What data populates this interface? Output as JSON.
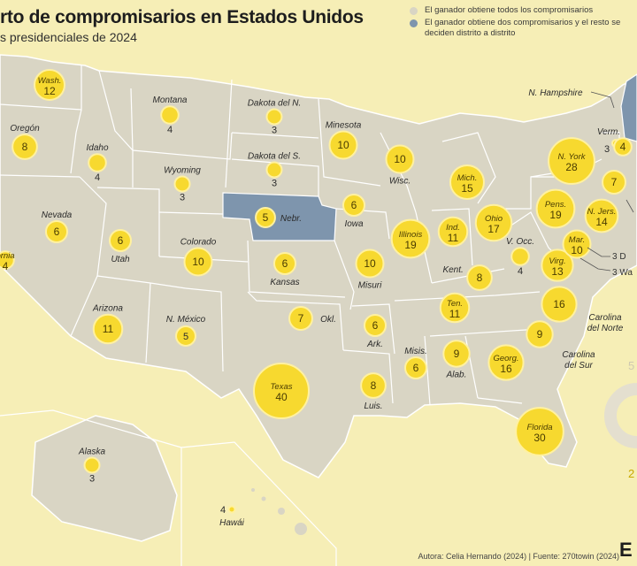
{
  "header": {
    "title": "rto de compromisarios en Estados Unidos",
    "subtitle": "s presidenciales de 2024"
  },
  "legend": {
    "items": [
      {
        "label": "El ganador obtiene todos los compromisarios",
        "color": "#d9d5c4"
      },
      {
        "label": "El ganador obtiene dos compromisarios y el resto se deciden distrito a distrito",
        "color": "#7e95ad"
      }
    ]
  },
  "colors": {
    "background": "#f6eeb6",
    "state_fill": "#d9d5c4",
    "state_border": "#ffffff",
    "split_state_fill": "#7e95ad",
    "bubble_fill": "#f7d92f",
    "bubble_stroke": "#fff1a0"
  },
  "states": [
    {
      "id": "washington",
      "name": "Wash.",
      "votes": "12",
      "label_inside": true,
      "split": false
    },
    {
      "id": "oregon",
      "name": "Oregón",
      "votes": "8",
      "label_inside": false,
      "split": false
    },
    {
      "id": "california",
      "name": "ornia",
      "votes": "4",
      "label_inside": true,
      "split": false
    },
    {
      "id": "idaho",
      "name": "Idaho",
      "votes": "4",
      "label_inside": false,
      "split": false
    },
    {
      "id": "nevada",
      "name": "Nevada",
      "votes": "6",
      "label_inside": false,
      "split": false
    },
    {
      "id": "utah",
      "name": "Utah",
      "votes": "6",
      "label_inside": false,
      "split": false
    },
    {
      "id": "arizona",
      "name": "Arizona",
      "votes": "11",
      "label_inside": false,
      "split": false
    },
    {
      "id": "montana",
      "name": "Montana",
      "votes": "4",
      "label_inside": false,
      "split": false
    },
    {
      "id": "wyoming",
      "name": "Wyoming",
      "votes": "3",
      "label_inside": false,
      "split": false
    },
    {
      "id": "colorado",
      "name": "Colorado",
      "votes": "10",
      "label_inside": false,
      "split": false
    },
    {
      "id": "new-mexico",
      "name": "N. México",
      "votes": "5",
      "label_inside": false,
      "split": false
    },
    {
      "id": "north-dakota",
      "name": "Dakota del N.",
      "votes": "3",
      "label_inside": false,
      "split": false
    },
    {
      "id": "south-dakota",
      "name": "Dakota del S.",
      "votes": "3",
      "label_inside": false,
      "split": false
    },
    {
      "id": "nebraska",
      "name": "Nebr.",
      "votes": "5",
      "label_inside": false,
      "split": true
    },
    {
      "id": "kansas",
      "name": "Kansas",
      "votes": "6",
      "label_inside": false,
      "split": false
    },
    {
      "id": "oklahoma",
      "name": "Okl.",
      "votes": "7",
      "label_inside": false,
      "split": false
    },
    {
      "id": "texas",
      "name": "Texas",
      "votes": "40",
      "label_inside": true,
      "split": false
    },
    {
      "id": "minnesota",
      "name": "Minesota",
      "votes": "10",
      "label_inside": false,
      "split": false
    },
    {
      "id": "iowa",
      "name": "Iowa",
      "votes": "6",
      "label_inside": false,
      "split": false
    },
    {
      "id": "missouri",
      "name": "Misuri",
      "votes": "10",
      "label_inside": false,
      "split": false
    },
    {
      "id": "arkansas",
      "name": "Ark.",
      "votes": "6",
      "label_inside": false,
      "split": false
    },
    {
      "id": "louisiana",
      "name": "Luis.",
      "votes": "8",
      "label_inside": false,
      "split": false
    },
    {
      "id": "wisconsin",
      "name": "Wisc.",
      "votes": "10",
      "label_inside": false,
      "split": false
    },
    {
      "id": "illinois",
      "name": "Illinois",
      "votes": "19",
      "label_inside": true,
      "split": false
    },
    {
      "id": "michigan",
      "name": "Mich.",
      "votes": "15",
      "label_inside": true,
      "split": false
    },
    {
      "id": "indiana",
      "name": "Ind.",
      "votes": "11",
      "label_inside": true,
      "split": false
    },
    {
      "id": "ohio",
      "name": "Ohio",
      "votes": "17",
      "label_inside": true,
      "split": false
    },
    {
      "id": "kentucky",
      "name": "Kent.",
      "votes": "8",
      "label_inside": false,
      "split": false
    },
    {
      "id": "tennessee",
      "name": "Ten.",
      "votes": "11",
      "label_inside": true,
      "split": false
    },
    {
      "id": "mississippi",
      "name": "Misis.",
      "votes": "6",
      "label_inside": false,
      "split": false
    },
    {
      "id": "alabama",
      "name": "Alab.",
      "votes": "9",
      "label_inside": false,
      "split": false
    },
    {
      "id": "georgia",
      "name": "Georg.",
      "votes": "16",
      "label_inside": true,
      "split": false
    },
    {
      "id": "florida",
      "name": "Florida",
      "votes": "30",
      "label_inside": true,
      "split": false
    },
    {
      "id": "south-carolina",
      "name": "Carolina del Sur",
      "votes": "9",
      "label_inside": false,
      "split": false
    },
    {
      "id": "north-carolina",
      "name": "Carolina del Norte",
      "votes": "16",
      "label_inside": false,
      "split": false
    },
    {
      "id": "virginia",
      "name": "Virg.",
      "votes": "13",
      "label_inside": true,
      "split": false
    },
    {
      "id": "west-virginia",
      "name": "V. Occ.",
      "votes": "4",
      "label_inside": false,
      "split": false
    },
    {
      "id": "pennsylvania",
      "name": "Pens.",
      "votes": "19",
      "label_inside": true,
      "split": false
    },
    {
      "id": "new-york",
      "name": "N. York",
      "votes": "28",
      "label_inside": true,
      "split": false
    },
    {
      "id": "new-jersey",
      "name": "N. Jers.",
      "votes": "14",
      "label_inside": true,
      "split": false
    },
    {
      "id": "maryland",
      "name": "Mar.",
      "votes": "10",
      "label_inside": true,
      "split": false
    },
    {
      "id": "vermont",
      "name": "Verm.",
      "votes": "3",
      "label_inside": false,
      "split": false
    },
    {
      "id": "new-hampshire",
      "name": "N. Hampshire",
      "votes": "4",
      "label_inside": false,
      "split": false
    },
    {
      "id": "connecticut",
      "name": "",
      "votes": "7",
      "label_inside": false,
      "split": false
    },
    {
      "id": "alaska",
      "name": "Alaska",
      "votes": "3",
      "label_inside": false,
      "split": false
    },
    {
      "id": "hawaii",
      "name": "Hawái",
      "votes": "4",
      "label_inside": false,
      "split": false
    }
  ],
  "callouts": [
    {
      "id": "delaware",
      "text": "3 D"
    },
    {
      "id": "dc",
      "text": "3 Wa"
    }
  ],
  "partial_marks": [
    {
      "id": "right-edge-number",
      "text": "5"
    },
    {
      "id": "right-edge-number-2",
      "text": "2"
    }
  ],
  "credit": "Autora: Celia Hernando (2024) | Fuente: 270towin (2024)",
  "brand": "E"
}
